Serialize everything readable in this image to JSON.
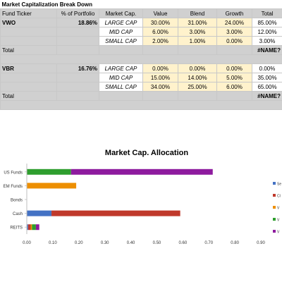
{
  "sheet": {
    "title": "Market Capitalization Break Down",
    "headers": [
      "Fund Ticker",
      "% of Portfolio",
      "Market Cap.",
      "Value",
      "Blend",
      "Growth",
      "Total"
    ],
    "groups": [
      {
        "ticker": "VWO",
        "percent": "18.86%",
        "rows": [
          {
            "cap": "LARGE CAP",
            "value": "30.00%",
            "blend": "31.00%",
            "growth": "24.00%",
            "total": "85.00%"
          },
          {
            "cap": "MID CAP",
            "value": "6.00%",
            "blend": "3.00%",
            "growth": "3.00%",
            "total": "12.00%"
          },
          {
            "cap": "SMALL CAP",
            "value": "2.00%",
            "blend": "1.00%",
            "growth": "0.00%",
            "total": "3.00%"
          }
        ],
        "total_label": "Total",
        "total_value": "#NAME?"
      },
      {
        "ticker": "VBR",
        "percent": "16.76%",
        "rows": [
          {
            "cap": "LARGE CAP",
            "value": "0.00%",
            "blend": "0.00%",
            "growth": "0.00%",
            "total": "0.00%"
          },
          {
            "cap": "MID CAP",
            "value": "15.00%",
            "blend": "14.00%",
            "growth": "5.00%",
            "total": "35.00%"
          },
          {
            "cap": "SMALL CAP",
            "value": "34.00%",
            "blend": "25.00%",
            "growth": "6.00%",
            "total": "65.00%"
          }
        ],
        "total_label": "Total",
        "total_value": "#NAME?"
      }
    ]
  },
  "chart_data": {
    "type": "bar",
    "orientation": "horizontal",
    "stacked": true,
    "title": "Market Cap. Allocation",
    "categories": [
      "US Funds",
      "EM Funds",
      "Bonds",
      "Cash",
      "REITS"
    ],
    "series": [
      {
        "label_fragment": "Se",
        "color": "#4472c4",
        "values": [
          0,
          0,
          0,
          0.095,
          0.005
        ]
      },
      {
        "label_fragment": "Cl",
        "color": "#c0392b",
        "values": [
          0,
          0,
          0,
          0.495,
          0.01
        ]
      },
      {
        "label_fragment": "V",
        "color": "#ed8f00",
        "values": [
          0,
          0.19,
          0,
          0,
          0.005
        ]
      },
      {
        "label_fragment": "V",
        "color": "#2e9e2e",
        "values": [
          0.17,
          0,
          0,
          0,
          0.015
        ]
      },
      {
        "label_fragment": "V",
        "color": "#8e1b9e",
        "values": [
          0.545,
          0,
          0,
          0,
          0.013
        ]
      }
    ],
    "xticks": [
      "0.00",
      "0.10",
      "0.20",
      "0.30",
      "0.40",
      "0.50",
      "0.60",
      "0.70",
      "0.80",
      "0.90"
    ],
    "xlim": [
      0,
      0.9
    ],
    "grid": false,
    "legend_position": "right"
  }
}
